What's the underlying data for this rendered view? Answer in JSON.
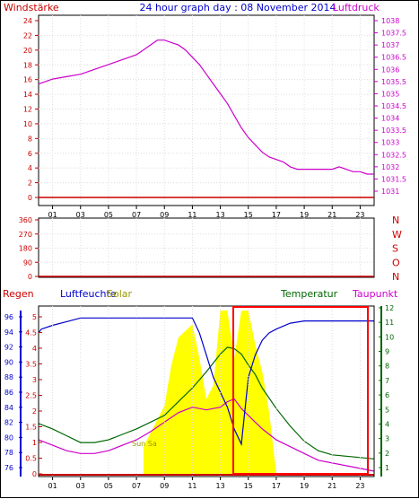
{
  "title": "24 hour graph day : 08 November 2014",
  "x_ticks": [
    "01",
    "03",
    "05",
    "07",
    "09",
    "11",
    "13",
    "15",
    "17",
    "19",
    "21",
    "23"
  ],
  "panel1": {
    "left_label": "Windstärke",
    "right_label": "Luftdruck",
    "left_ticks": [
      "24",
      "22",
      "20",
      "18",
      "16",
      "14",
      "12",
      "10",
      "8",
      "6",
      "4",
      "2",
      "0"
    ],
    "right_ticks": [
      "1038",
      "1037.5",
      "1037",
      "1036.5",
      "1036",
      "1035.5",
      "1035",
      "1034.5",
      "1034",
      "1033.5",
      "1033",
      "1032.5",
      "1032",
      "1031.5",
      "1031"
    ]
  },
  "panel2": {
    "left_ticks": [
      "360",
      "270",
      "180",
      "90",
      "0"
    ],
    "right_letters": [
      "N",
      "W",
      "S",
      "O",
      "N"
    ]
  },
  "panel3": {
    "label_regen": "Regen",
    "label_luftfeuchte": "Luftfeuchte",
    "label_solar": "Solar",
    "label_temperatur": "Temperatur",
    "label_taupunkt": "Taupunkt",
    "regen_ticks": [
      "5",
      "4.5",
      "4",
      "3.5",
      "3",
      "2.5",
      "2",
      "1.5",
      "1",
      "0.5",
      "0"
    ],
    "humidity_ticks": [
      "96",
      "94",
      "92",
      "90",
      "88",
      "86",
      "84",
      "82",
      "80",
      "78",
      "76"
    ],
    "temp_ticks": [
      "12",
      "11",
      "10",
      "9",
      "8",
      "7",
      "6",
      "5",
      "4",
      "3",
      "2",
      "1"
    ],
    "solar_annotation": "Sun Sa"
  },
  "colors": {
    "title": "#0000cc",
    "wind": "#cc0000",
    "pressure": "#cc00cc",
    "humidity": "#0000cc",
    "temperature": "#006600",
    "dewpoint": "#cc00cc",
    "solar": "#ffff00",
    "solar_label": "#999900",
    "rain": "#cc0000",
    "direction": "#cc0000"
  },
  "chart_data": [
    {
      "type": "line",
      "xlim": [
        0,
        24
      ],
      "series": [
        {
          "name": "Luftdruck",
          "axis": "right",
          "ylim": [
            1031,
            1038
          ],
          "x": [
            0,
            1,
            2,
            3,
            4,
            5,
            6,
            7,
            7.5,
            8,
            8.5,
            9,
            9.5,
            10,
            10.5,
            11,
            11.5,
            12,
            12.5,
            13,
            13.5,
            14,
            14.5,
            15,
            15.5,
            16,
            16.5,
            17,
            17.5,
            18,
            18.5,
            19,
            19.5,
            20,
            20.5,
            21,
            21.5,
            22,
            22.5,
            23,
            23.5,
            24
          ],
          "y": [
            1035.4,
            1035.6,
            1035.7,
            1035.8,
            1036.0,
            1036.2,
            1036.4,
            1036.6,
            1036.8,
            1037.0,
            1037.2,
            1037.2,
            1037.1,
            1037.0,
            1036.8,
            1036.5,
            1036.2,
            1035.8,
            1035.4,
            1035.0,
            1034.6,
            1034.1,
            1033.6,
            1033.2,
            1032.9,
            1032.6,
            1032.4,
            1032.3,
            1032.2,
            1032.0,
            1031.9,
            1031.9,
            1031.9,
            1031.9,
            1031.9,
            1031.9,
            1032.0,
            1031.9,
            1031.8,
            1031.8,
            1031.7,
            1031.7
          ]
        },
        {
          "name": "Windstärke",
          "axis": "left",
          "ylim": [
            0,
            24
          ],
          "x": [
            0,
            24
          ],
          "y": [
            0,
            0
          ]
        }
      ]
    },
    {
      "type": "scatter",
      "xlim": [
        0,
        24
      ],
      "ylim": [
        0,
        360
      ],
      "series": [
        {
          "name": "direction",
          "x": [
            0,
            24
          ],
          "y": [
            0,
            0
          ]
        }
      ]
    },
    {
      "type": "line",
      "xlim": [
        0,
        24
      ],
      "series": [
        {
          "name": "Luftfeuchte",
          "axis": "humidity",
          "ylim": [
            75,
            97
          ],
          "x": [
            0,
            0.2,
            1,
            2,
            3,
            4,
            5,
            6,
            7,
            8,
            9,
            10,
            11,
            11.5,
            12,
            12.5,
            13,
            13.5,
            14,
            14.5,
            15,
            15.5,
            16,
            16.5,
            17,
            18,
            19,
            20,
            21,
            22,
            23,
            24
          ],
          "y": [
            94,
            94.5,
            95,
            95.5,
            96,
            96,
            96,
            96,
            96,
            96,
            96,
            96,
            96,
            94,
            91,
            88,
            86,
            84,
            81,
            79,
            88,
            91,
            93,
            94,
            94.5,
            95.3,
            95.6,
            95.6,
            95.6,
            95.6,
            95.6,
            95.6
          ]
        },
        {
          "name": "Temperatur",
          "axis": "temp",
          "ylim": [
            0.5,
            12.5
          ],
          "x": [
            0,
            1,
            2,
            3,
            4,
            5,
            6,
            7,
            8,
            9,
            10,
            11,
            12,
            13,
            13.5,
            14,
            14.5,
            15,
            15.5,
            16,
            17,
            18,
            19,
            20,
            21,
            22,
            23,
            24
          ],
          "y": [
            4.2,
            3.8,
            3.3,
            2.8,
            2.8,
            3.0,
            3.4,
            3.8,
            4.3,
            4.8,
            5.8,
            6.8,
            8.0,
            9.3,
            9.8,
            9.7,
            9.3,
            8.5,
            7.8,
            6.8,
            5.3,
            4.0,
            2.9,
            2.2,
            1.9,
            1.8,
            1.7,
            1.6
          ]
        },
        {
          "name": "Taupunkt",
          "axis": "temp",
          "ylim": [
            0.5,
            12.5
          ],
          "x": [
            0,
            1,
            2,
            3,
            4,
            5,
            6,
            7,
            8,
            9,
            10,
            11,
            12,
            13,
            13.5,
            14,
            14.5,
            15,
            15.5,
            16,
            17,
            18,
            19,
            20,
            21,
            22,
            23,
            24
          ],
          "y": [
            3.0,
            2.6,
            2.2,
            2.0,
            2.0,
            2.2,
            2.6,
            3.0,
            3.6,
            4.3,
            5.0,
            5.4,
            5.2,
            5.4,
            5.8,
            6.0,
            5.3,
            4.8,
            4.3,
            3.8,
            3.0,
            2.5,
            2.0,
            1.5,
            1.3,
            1.1,
            0.9,
            0.7
          ]
        },
        {
          "name": "Solar",
          "axis": "temp",
          "ylim": [
            0.5,
            12.5
          ],
          "x": [
            7.5,
            8,
            9,
            9.5,
            10,
            10.5,
            11,
            11.5,
            12,
            12.5,
            13,
            13.5,
            14,
            14.5,
            15,
            15.5,
            16,
            16.5,
            17
          ],
          "y": [
            2.5,
            3.5,
            5.5,
            8.5,
            10.5,
            11,
            11.5,
            9,
            6,
            7,
            12.5,
            12.5,
            9,
            12.5,
            12.5,
            10,
            8,
            5,
            0.5
          ]
        },
        {
          "name": "Regen",
          "axis": "regen",
          "ylim": [
            0,
            5.5
          ],
          "x": [
            0,
            24
          ],
          "y": [
            0,
            0
          ]
        }
      ]
    }
  ]
}
